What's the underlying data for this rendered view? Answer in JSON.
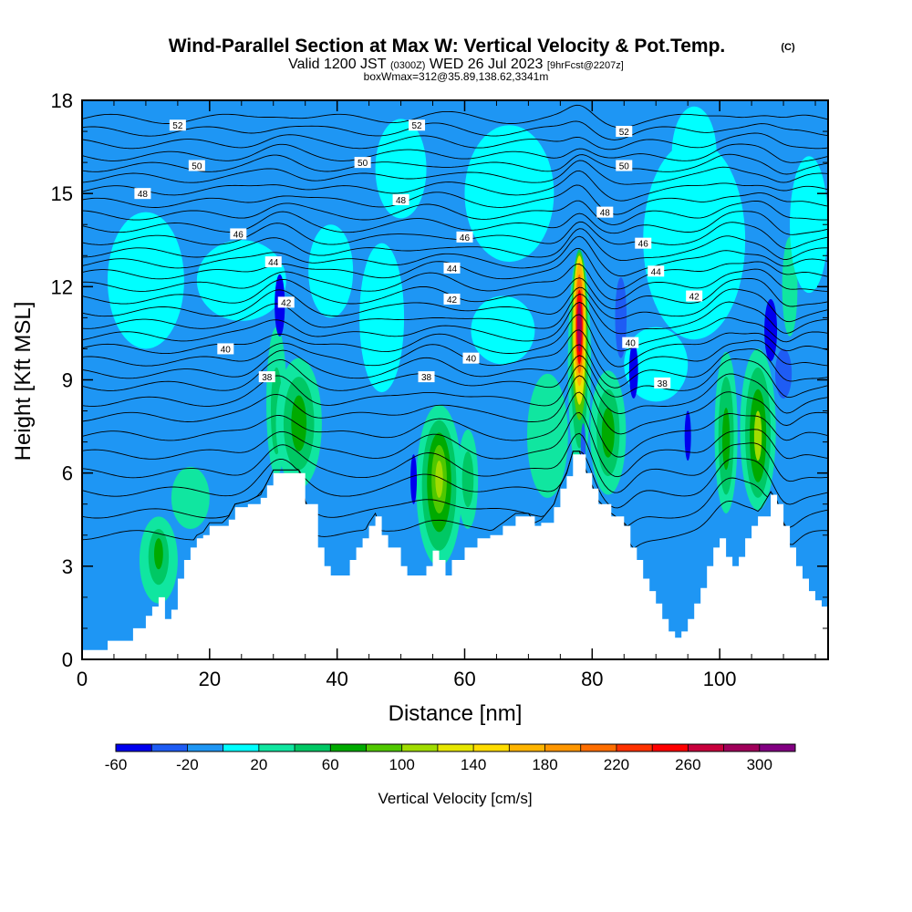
{
  "chart_data": {
    "type": "heatmap",
    "title": "Wind-Parallel Section at Max W: Vertical Velocity & Pot.Temp.",
    "copyright": "(C)",
    "subtitle_valid": "Valid 1200 JST",
    "subtitle_utc": "(0300Z)",
    "subtitle_date": "WED 26 Jul 2023",
    "subtitle_fcst": "[9hrFcst@2207z]",
    "subtitle2": "boxWmax=312@35.89,138.62,3341m",
    "xlabel": "Distance [nm]",
    "ylabel": "Height [Kft MSL]",
    "xlim": [
      0,
      117
    ],
    "ylim": [
      0,
      18
    ],
    "xticks": [
      "0",
      "20",
      "40",
      "60",
      "80",
      "100"
    ],
    "yticks": [
      "0",
      "3",
      "6",
      "9",
      "12",
      "15",
      "18"
    ],
    "colorbar": {
      "label": "Vertical Velocity [cm/s]",
      "bounds": [
        -60,
        -40,
        -20,
        0,
        20,
        40,
        60,
        80,
        100,
        120,
        140,
        160,
        180,
        200,
        220,
        240,
        260,
        280,
        300,
        320
      ],
      "colors": [
        "#0000ee",
        "#1e5cf4",
        "#1e96f4",
        "#00ffff",
        "#10e6a0",
        "#00c864",
        "#00aa00",
        "#50c800",
        "#a0dc00",
        "#e6e600",
        "#ffdc00",
        "#ffb400",
        "#ff9600",
        "#ff6e00",
        "#ff3200",
        "#ff0000",
        "#c8003c",
        "#a0005a",
        "#820082"
      ],
      "tick_labels": [
        "-60",
        "-20",
        "20",
        "60",
        "100",
        "140",
        "180",
        "220",
        "260",
        "300"
      ]
    },
    "background_color": "#1e96f4",
    "terrain": [
      [
        0,
        0.3
      ],
      [
        3,
        0.3
      ],
      [
        4,
        0.6
      ],
      [
        7,
        0.6
      ],
      [
        8,
        1.0
      ],
      [
        9,
        1.0
      ],
      [
        10,
        1.4
      ],
      [
        11,
        1.7
      ],
      [
        12,
        2.0
      ],
      [
        13,
        1.3
      ],
      [
        14,
        1.6
      ],
      [
        15,
        2.6
      ],
      [
        16,
        3.2
      ],
      [
        17,
        3.6
      ],
      [
        18,
        3.9
      ],
      [
        19,
        4.0
      ],
      [
        20,
        4.3
      ],
      [
        22,
        4.3
      ],
      [
        23,
        4.5
      ],
      [
        24,
        4.9
      ],
      [
        26,
        5.0
      ],
      [
        28,
        5.2
      ],
      [
        29,
        5.6
      ],
      [
        30,
        6.0
      ],
      [
        34,
        6.0
      ],
      [
        35,
        5.0
      ],
      [
        37,
        3.6
      ],
      [
        38,
        3.0
      ],
      [
        39,
        2.7
      ],
      [
        41,
        2.7
      ],
      [
        42,
        3.2
      ],
      [
        43,
        3.6
      ],
      [
        44,
        3.9
      ],
      [
        45,
        4.3
      ],
      [
        46,
        4.6
      ],
      [
        47,
        4.0
      ],
      [
        48,
        3.6
      ],
      [
        49,
        3.6
      ],
      [
        50,
        3.0
      ],
      [
        51,
        2.7
      ],
      [
        53,
        2.7
      ],
      [
        54,
        3.0
      ],
      [
        55,
        3.5
      ],
      [
        56,
        3.2
      ],
      [
        57,
        2.7
      ],
      [
        58,
        3.2
      ],
      [
        60,
        3.6
      ],
      [
        62,
        3.9
      ],
      [
        64,
        4.0
      ],
      [
        66,
        4.3
      ],
      [
        68,
        4.6
      ],
      [
        70,
        4.6
      ],
      [
        71,
        4.3
      ],
      [
        72,
        4.4
      ],
      [
        74,
        4.9
      ],
      [
        75,
        5.5
      ],
      [
        76,
        5.9
      ],
      [
        77,
        6.6
      ],
      [
        78,
        6.6
      ],
      [
        79,
        6.0
      ],
      [
        80,
        5.5
      ],
      [
        81,
        5.0
      ],
      [
        83,
        4.6
      ],
      [
        85,
        4.3
      ],
      [
        86,
        3.6
      ],
      [
        87,
        3.2
      ],
      [
        88,
        2.6
      ],
      [
        89,
        2.2
      ],
      [
        90,
        1.8
      ],
      [
        91,
        1.3
      ],
      [
        92,
        0.9
      ],
      [
        93,
        0.7
      ],
      [
        94,
        0.9
      ],
      [
        95,
        1.3
      ],
      [
        96,
        1.8
      ],
      [
        97,
        2.3
      ],
      [
        98,
        3.0
      ],
      [
        99,
        3.6
      ],
      [
        100,
        3.9
      ],
      [
        101,
        3.3
      ],
      [
        102,
        3.0
      ],
      [
        103,
        3.3
      ],
      [
        104,
        3.9
      ],
      [
        105,
        4.3
      ],
      [
        106,
        4.6
      ],
      [
        108,
        5.3
      ],
      [
        109,
        5.0
      ],
      [
        110,
        4.3
      ],
      [
        111,
        3.6
      ],
      [
        112,
        3.0
      ],
      [
        113,
        2.6
      ],
      [
        114,
        2.2
      ],
      [
        115,
        1.9
      ],
      [
        116,
        1.7
      ],
      [
        117,
        1.7
      ]
    ],
    "cells": [
      {
        "x": 12,
        "y": 3.2,
        "rx": 3.0,
        "ry": 1.4,
        "value": 30
      },
      {
        "x": 12,
        "y": 3.3,
        "rx": 1.6,
        "ry": 0.9,
        "value": 50
      },
      {
        "x": 12,
        "y": 3.4,
        "rx": 0.7,
        "ry": 0.5,
        "value": 70
      },
      {
        "x": 17,
        "y": 5.2,
        "rx": 3.0,
        "ry": 1.0,
        "value": 30
      },
      {
        "x": 30.5,
        "y": 8.3,
        "rx": 1.6,
        "ry": 2.4,
        "value": 30
      },
      {
        "x": 30.5,
        "y": 8.0,
        "rx": 0.9,
        "ry": 1.4,
        "value": 50
      },
      {
        "x": 34,
        "y": 7.6,
        "rx": 3.6,
        "ry": 2.1,
        "value": 30
      },
      {
        "x": 34,
        "y": 7.6,
        "rx": 2.4,
        "ry": 1.5,
        "value": 50
      },
      {
        "x": 34,
        "y": 7.6,
        "rx": 1.2,
        "ry": 0.9,
        "value": 70
      },
      {
        "x": 56,
        "y": 5.6,
        "rx": 3.6,
        "ry": 2.6,
        "value": 30
      },
      {
        "x": 56,
        "y": 5.6,
        "rx": 2.7,
        "ry": 2.1,
        "value": 50
      },
      {
        "x": 56,
        "y": 5.7,
        "rx": 1.9,
        "ry": 1.6,
        "value": 70
      },
      {
        "x": 56,
        "y": 5.8,
        "rx": 1.2,
        "ry": 1.1,
        "value": 90
      },
      {
        "x": 56,
        "y": 5.8,
        "rx": 0.6,
        "ry": 0.6,
        "value": 110
      },
      {
        "x": 60.5,
        "y": 5.8,
        "rx": 1.6,
        "ry": 1.6,
        "value": 30
      },
      {
        "x": 60.5,
        "y": 5.8,
        "rx": 0.9,
        "ry": 0.9,
        "value": 50
      },
      {
        "x": 73,
        "y": 7.2,
        "rx": 3.2,
        "ry": 2.0,
        "value": 30
      },
      {
        "x": 78,
        "y": 9.5,
        "rx": 1.8,
        "ry": 3.6,
        "value": 30
      },
      {
        "x": 78,
        "y": 10.0,
        "rx": 1.4,
        "ry": 3.2,
        "value": 50
      },
      {
        "x": 78,
        "y": 10.4,
        "rx": 1.2,
        "ry": 2.7,
        "value": 90
      },
      {
        "x": 78,
        "y": 10.6,
        "rx": 1.0,
        "ry": 2.4,
        "value": 130
      },
      {
        "x": 78,
        "y": 10.8,
        "rx": 0.8,
        "ry": 2.0,
        "value": 170
      },
      {
        "x": 78,
        "y": 10.8,
        "rx": 0.6,
        "ry": 1.6,
        "value": 210
      },
      {
        "x": 78,
        "y": 10.7,
        "rx": 0.5,
        "ry": 1.2,
        "value": 250
      },
      {
        "x": 78,
        "y": 10.7,
        "rx": 0.35,
        "ry": 0.8,
        "value": 290
      },
      {
        "x": 82.5,
        "y": 7.3,
        "rx": 2.8,
        "ry": 2.0,
        "value": 30
      },
      {
        "x": 82.5,
        "y": 7.3,
        "rx": 1.8,
        "ry": 1.4,
        "value": 50
      },
      {
        "x": 82.5,
        "y": 7.3,
        "rx": 1.0,
        "ry": 0.8,
        "value": 70
      },
      {
        "x": 101,
        "y": 7.3,
        "rx": 1.8,
        "ry": 2.6,
        "value": 30
      },
      {
        "x": 101,
        "y": 7.2,
        "rx": 1.2,
        "ry": 1.9,
        "value": 50
      },
      {
        "x": 101,
        "y": 7.1,
        "rx": 0.6,
        "ry": 1.0,
        "value": 70
      },
      {
        "x": 106,
        "y": 7.4,
        "rx": 2.8,
        "ry": 2.6,
        "value": 30
      },
      {
        "x": 106,
        "y": 7.3,
        "rx": 2.0,
        "ry": 2.1,
        "value": 50
      },
      {
        "x": 106,
        "y": 7.2,
        "rx": 1.3,
        "ry": 1.5,
        "value": 70
      },
      {
        "x": 106,
        "y": 7.2,
        "rx": 0.6,
        "ry": 0.8,
        "value": 110
      },
      {
        "x": 111,
        "y": 12.0,
        "rx": 1.2,
        "ry": 1.6,
        "value": 30
      },
      {
        "x": 10,
        "y": 12.2,
        "rx": 6.0,
        "ry": 2.2,
        "value": 10
      },
      {
        "x": 25,
        "y": 12.2,
        "rx": 7.0,
        "ry": 1.3,
        "value": 10
      },
      {
        "x": 39,
        "y": 12.5,
        "rx": 3.5,
        "ry": 1.5,
        "value": 10
      },
      {
        "x": 47,
        "y": 11.0,
        "rx": 3.5,
        "ry": 2.4,
        "value": 10
      },
      {
        "x": 50,
        "y": 15.8,
        "rx": 4.0,
        "ry": 1.6,
        "value": 10
      },
      {
        "x": 67,
        "y": 15.0,
        "rx": 7.0,
        "ry": 2.2,
        "value": 10
      },
      {
        "x": 66,
        "y": 10.6,
        "rx": 5.0,
        "ry": 1.1,
        "value": 10
      },
      {
        "x": 96,
        "y": 13.5,
        "rx": 8.0,
        "ry": 3.2,
        "value": 10
      },
      {
        "x": 96,
        "y": 16.3,
        "rx": 3.5,
        "ry": 1.5,
        "value": 10
      },
      {
        "x": 114,
        "y": 14.0,
        "rx": 3.0,
        "ry": 2.2,
        "value": 10
      },
      {
        "x": 90,
        "y": 9.5,
        "rx": 5.0,
        "ry": 1.2,
        "value": 10
      },
      {
        "x": 31,
        "y": 11.4,
        "rx": 0.8,
        "ry": 1.0,
        "value": -50
      },
      {
        "x": 78.6,
        "y": 6.8,
        "rx": 0.4,
        "ry": 0.8,
        "value": -30
      },
      {
        "x": 84.5,
        "y": 11.0,
        "rx": 0.9,
        "ry": 1.3,
        "value": -30
      },
      {
        "x": 86.5,
        "y": 9.3,
        "rx": 0.7,
        "ry": 0.9,
        "value": -50
      },
      {
        "x": 108,
        "y": 10.6,
        "rx": 1.0,
        "ry": 1.0,
        "value": -50
      },
      {
        "x": 110,
        "y": 9.2,
        "rx": 1.3,
        "ry": 0.8,
        "value": -30
      },
      {
        "x": 95,
        "y": 7.2,
        "rx": 0.5,
        "ry": 0.8,
        "value": -50
      },
      {
        "x": 52,
        "y": 5.8,
        "rx": 0.5,
        "ry": 0.8,
        "value": -50
      }
    ],
    "contour_labels": [
      {
        "text": "52",
        "x": 15,
        "y": 17.2
      },
      {
        "text": "52",
        "x": 52.5,
        "y": 17.2
      },
      {
        "text": "52",
        "x": 85,
        "y": 17.0
      },
      {
        "text": "50",
        "x": 18,
        "y": 15.9
      },
      {
        "text": "50",
        "x": 44,
        "y": 16.0
      },
      {
        "text": "50",
        "x": 85,
        "y": 15.9
      },
      {
        "text": "48",
        "x": 9.5,
        "y": 15.0
      },
      {
        "text": "48",
        "x": 50,
        "y": 14.8
      },
      {
        "text": "48",
        "x": 82,
        "y": 14.4
      },
      {
        "text": "46",
        "x": 24.5,
        "y": 13.7
      },
      {
        "text": "46",
        "x": 60,
        "y": 13.6
      },
      {
        "text": "46",
        "x": 88,
        "y": 13.4
      },
      {
        "text": "44",
        "x": 30,
        "y": 12.8
      },
      {
        "text": "44",
        "x": 58,
        "y": 12.6
      },
      {
        "text": "44",
        "x": 90,
        "y": 12.5
      },
      {
        "text": "42",
        "x": 32,
        "y": 11.5
      },
      {
        "text": "42",
        "x": 58,
        "y": 11.6
      },
      {
        "text": "42",
        "x": 96,
        "y": 11.7
      },
      {
        "text": "40",
        "x": 22.5,
        "y": 10.0
      },
      {
        "text": "40",
        "x": 61,
        "y": 9.7
      },
      {
        "text": "40",
        "x": 86,
        "y": 10.2
      },
      {
        "text": "38",
        "x": 29,
        "y": 9.1
      },
      {
        "text": "38",
        "x": 54,
        "y": 9.1
      },
      {
        "text": "38",
        "x": 91,
        "y": 8.9
      }
    ],
    "isentrope_heights": [
      17.4,
      17.0,
      16.6,
      16.2,
      15.85,
      15.5,
      15.1,
      14.7,
      14.3,
      13.9,
      13.5,
      13.1,
      12.75,
      12.4,
      12.0,
      11.6,
      11.2,
      10.8,
      10.4,
      10.0,
      9.6,
      9.2,
      8.8,
      8.3,
      7.8,
      7.2,
      6.6,
      6.0,
      5.4,
      4.7,
      4.0
    ]
  }
}
